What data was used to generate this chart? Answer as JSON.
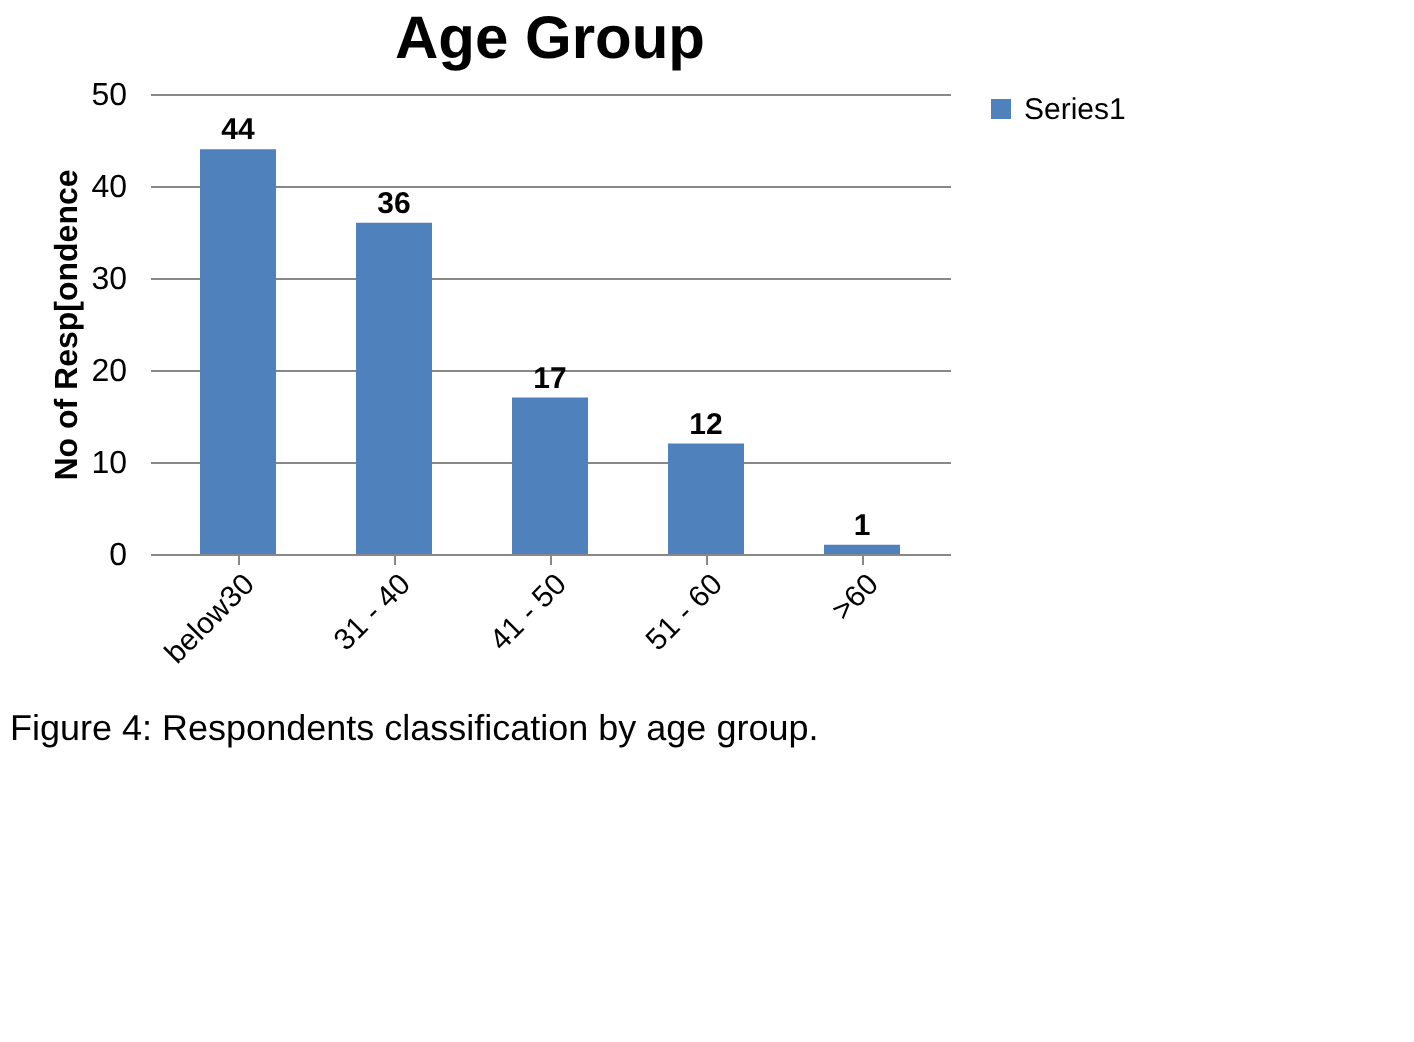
{
  "chart_data": {
    "type": "bar",
    "title": "Age Group",
    "ylabel": "No of Resp[ondence",
    "categories": [
      "below30",
      "31 - 40",
      "41 - 50",
      "51 - 60",
      ">60"
    ],
    "series": [
      {
        "name": "Series1",
        "color": "#4f81bd",
        "values": [
          44,
          36,
          17,
          12,
          1
        ]
      }
    ],
    "ylim": [
      0,
      50
    ],
    "yticks": [
      0,
      10,
      20,
      30,
      40,
      50
    ],
    "grid": "y",
    "legend": "right",
    "data_labels": true,
    "annotations": [
      "Figure 4: Respondents classification by age group."
    ]
  }
}
